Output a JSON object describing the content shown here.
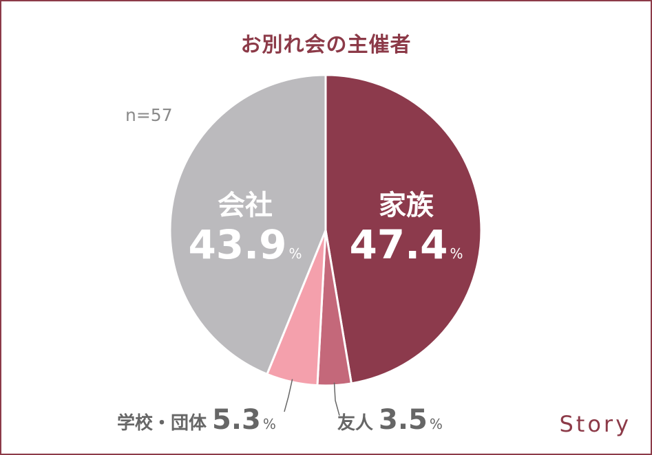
{
  "chart_data": {
    "type": "pie",
    "title": "お別れ会の主催者",
    "sample_size": "n=57",
    "unit": "%",
    "slices": [
      {
        "name": "家族",
        "value": 47.4,
        "display": "47.4",
        "color": "#8c3a4c"
      },
      {
        "name": "友人",
        "value": 3.5,
        "display": "3.5",
        "color": "#c4687a"
      },
      {
        "name": "学校・団体",
        "value": 5.3,
        "display": "5.3",
        "color": "#f4a0ac"
      },
      {
        "name": "会社",
        "value": 43.9,
        "display": "43.9",
        "color": "#bbbabd"
      }
    ]
  },
  "brand": {
    "logo_text": "Story"
  }
}
